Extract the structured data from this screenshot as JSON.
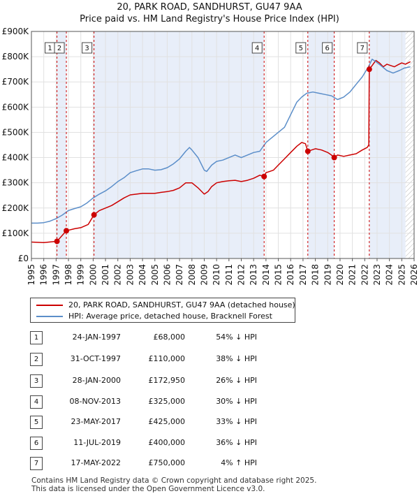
{
  "chart_data": {
    "type": "line",
    "title": "20, PARK ROAD, SANDHURST, GU47 9AA",
    "subtitle": "Price paid vs. HM Land Registry's House Price Index (HPI)",
    "xlabel": "",
    "ylabel": "",
    "xlim": [
      1995,
      2026
    ],
    "ylim": [
      0,
      900000
    ],
    "x_ticks": [
      "1995",
      "1996",
      "1997",
      "1998",
      "1999",
      "2000",
      "2001",
      "2002",
      "2003",
      "2004",
      "2005",
      "2006",
      "2007",
      "2008",
      "2009",
      "2010",
      "2011",
      "2012",
      "2013",
      "2014",
      "2015",
      "2016",
      "2017",
      "2018",
      "2019",
      "2020",
      "2021",
      "2022",
      "2023",
      "2024",
      "2025",
      "2026"
    ],
    "y_ticks": [
      {
        "value": 0,
        "label": "£0"
      },
      {
        "value": 100000,
        "label": "£100K"
      },
      {
        "value": 200000,
        "label": "£200K"
      },
      {
        "value": 300000,
        "label": "£300K"
      },
      {
        "value": 400000,
        "label": "£400K"
      },
      {
        "value": 500000,
        "label": "£500K"
      },
      {
        "value": 600000,
        "label": "£600K"
      },
      {
        "value": 700000,
        "label": "£700K"
      },
      {
        "value": 800000,
        "label": "£800K"
      },
      {
        "value": 900000,
        "label": "£900K"
      }
    ],
    "grid": true,
    "future_hatch_from": 2025.3,
    "series": [
      {
        "name": "20, PARK ROAD, SANDHURST, GU47 9AA (detached house)",
        "color": "#cc0000",
        "x": [
          1995.0,
          1996.0,
          1997.07,
          1997.2,
          1997.83,
          1998.5,
          1999.0,
          1999.6,
          2000.07,
          2000.5,
          2001.0,
          2001.5,
          2002.0,
          2002.5,
          2003.0,
          2003.5,
          2004.0,
          2004.5,
          2005.0,
          2005.5,
          2006.0,
          2006.5,
          2007.0,
          2007.5,
          2008.0,
          2008.5,
          2009.0,
          2009.3,
          2009.6,
          2010.0,
          2010.5,
          2011.0,
          2011.5,
          2012.0,
          2012.5,
          2013.0,
          2013.5,
          2013.85,
          2014.0,
          2014.3,
          2014.6,
          2015.0,
          2015.5,
          2016.0,
          2016.5,
          2016.9,
          2017.2,
          2017.39,
          2017.7,
          2018.0,
          2018.5,
          2019.0,
          2019.3,
          2019.53,
          2019.8,
          2020.3,
          2020.8,
          2021.3,
          2021.8,
          2022.2,
          2022.33,
          2022.37,
          2022.6,
          2022.9,
          2023.2,
          2023.5,
          2023.8,
          2024.1,
          2024.4,
          2024.7,
          2025.0,
          2025.3,
          2025.7
        ],
        "values": [
          65000,
          63000,
          68000,
          75000,
          110000,
          118000,
          122000,
          135000,
          172950,
          190000,
          200000,
          210000,
          225000,
          240000,
          252000,
          255000,
          258000,
          258000,
          258000,
          262000,
          265000,
          270000,
          280000,
          300000,
          300000,
          280000,
          255000,
          265000,
          285000,
          300000,
          305000,
          308000,
          310000,
          305000,
          310000,
          318000,
          330000,
          325000,
          340000,
          345000,
          350000,
          370000,
          395000,
          420000,
          445000,
          460000,
          455000,
          425000,
          430000,
          435000,
          430000,
          420000,
          410000,
          400000,
          410000,
          405000,
          410000,
          415000,
          430000,
          440000,
          450000,
          750000,
          765000,
          785000,
          775000,
          760000,
          770000,
          765000,
          760000,
          768000,
          775000,
          770000,
          780000
        ]
      },
      {
        "name": "HPI: Average price, detached house, Bracknell Forest",
        "color": "#5b8ec9",
        "x": [
          1995.0,
          1995.5,
          1996.0,
          1996.5,
          1997.0,
          1997.5,
          1998.0,
          1998.5,
          1999.0,
          1999.5,
          2000.0,
          2000.5,
          2001.0,
          2001.5,
          2002.0,
          2002.5,
          2003.0,
          2003.5,
          2004.0,
          2004.5,
          2005.0,
          2005.5,
          2006.0,
          2006.5,
          2007.0,
          2007.5,
          2007.8,
          2008.0,
          2008.5,
          2009.0,
          2009.2,
          2009.6,
          2010.0,
          2010.5,
          2011.0,
          2011.5,
          2012.0,
          2012.5,
          2013.0,
          2013.5,
          2014.0,
          2014.5,
          2015.0,
          2015.5,
          2016.0,
          2016.5,
          2016.9,
          2017.3,
          2017.8,
          2018.3,
          2018.8,
          2019.3,
          2019.8,
          2020.3,
          2020.8,
          2021.3,
          2021.8,
          2022.3,
          2022.6,
          2022.9,
          2023.3,
          2023.8,
          2024.3,
          2024.8,
          2025.2,
          2025.7
        ],
        "values": [
          140000,
          140000,
          142000,
          148000,
          158000,
          172000,
          190000,
          198000,
          205000,
          220000,
          240000,
          255000,
          268000,
          285000,
          305000,
          320000,
          340000,
          348000,
          355000,
          355000,
          350000,
          352000,
          360000,
          375000,
          395000,
          425000,
          440000,
          430000,
          400000,
          350000,
          345000,
          370000,
          385000,
          390000,
          400000,
          410000,
          400000,
          410000,
          420000,
          425000,
          460000,
          480000,
          500000,
          520000,
          570000,
          620000,
          640000,
          655000,
          660000,
          655000,
          650000,
          645000,
          630000,
          640000,
          660000,
          690000,
          720000,
          760000,
          790000,
          780000,
          765000,
          745000,
          735000,
          745000,
          755000,
          760000
        ]
      }
    ],
    "sales": [
      {
        "n": "1",
        "x": 1997.07,
        "value": 68000
      },
      {
        "n": "2",
        "x": 1997.83,
        "value": 110000
      },
      {
        "n": "3",
        "x": 2000.07,
        "value": 172950
      },
      {
        "n": "4",
        "x": 2013.85,
        "value": 325000
      },
      {
        "n": "5",
        "x": 2017.39,
        "value": 425000
      },
      {
        "n": "6",
        "x": 2019.53,
        "value": 400000
      },
      {
        "n": "7",
        "x": 2022.37,
        "value": 750000
      }
    ],
    "shaded_periods": [
      [
        1997.07,
        1997.83
      ],
      [
        2000.07,
        2013.85
      ],
      [
        2017.39,
        2019.53
      ],
      [
        2022.37,
        2025.3
      ]
    ]
  },
  "legend": {
    "property": "20, PARK ROAD, SANDHURST, GU47 9AA (detached house)",
    "hpi": "HPI: Average price, detached house, Bracknell Forest"
  },
  "transactions": [
    {
      "n": "1",
      "date": "24-JAN-1997",
      "price": "£68,000",
      "hpi": "54% ↓ HPI"
    },
    {
      "n": "2",
      "date": "31-OCT-1997",
      "price": "£110,000",
      "hpi": "38% ↓ HPI"
    },
    {
      "n": "3",
      "date": "28-JAN-2000",
      "price": "£172,950",
      "hpi": "26% ↓ HPI"
    },
    {
      "n": "4",
      "date": "08-NOV-2013",
      "price": "£325,000",
      "hpi": "30% ↓ HPI"
    },
    {
      "n": "5",
      "date": "23-MAY-2017",
      "price": "£425,000",
      "hpi": "33% ↓ HPI"
    },
    {
      "n": "6",
      "date": "11-JUL-2019",
      "price": "£400,000",
      "hpi": "36% ↓ HPI"
    },
    {
      "n": "7",
      "date": "17-MAY-2022",
      "price": "£750,000",
      "hpi": "4% ↑ HPI"
    }
  ],
  "footer": {
    "line1": "Contains HM Land Registry data © Crown copyright and database right 2025.",
    "line2": "This data is licensed under the Open Government Licence v3.0."
  }
}
